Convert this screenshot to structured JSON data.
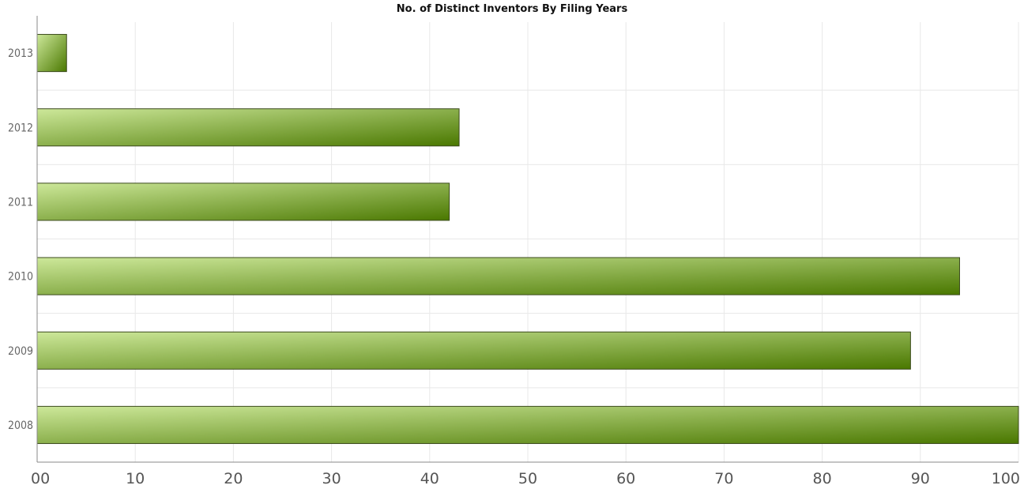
{
  "chart_data": {
    "type": "bar",
    "orientation": "horizontal",
    "title": "No. of Distinct Inventors By Filing Years",
    "xlabel": "",
    "ylabel": "",
    "categories": [
      "2013",
      "2012",
      "2011",
      "2010",
      "2009",
      "2008"
    ],
    "values": [
      3,
      43,
      42,
      94,
      89,
      100
    ],
    "xlim": [
      0,
      100
    ],
    "x_ticks": [
      0,
      10,
      20,
      30,
      40,
      50,
      60,
      70,
      80,
      90,
      100
    ],
    "x_tick_labels": [
      "00",
      "10",
      "20",
      "30",
      "40",
      "50",
      "60",
      "70",
      "80",
      "90",
      "100"
    ],
    "grid": true,
    "legend": "none",
    "colors": {
      "bar_light": "#cde89a",
      "bar_dark": "#4a7800",
      "bar_stroke": "#3b4a1c"
    }
  }
}
